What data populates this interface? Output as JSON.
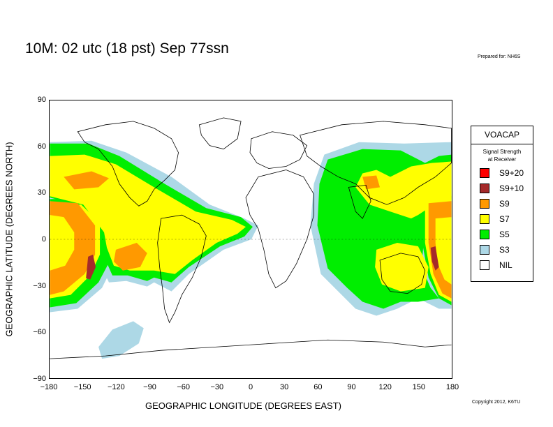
{
  "header": {
    "title": "10M:  02 utc (18 pst) Sep 77ssn",
    "prepared": "Prepared for: NH6S"
  },
  "footer": {
    "copyright": "Copyright 2012, K6TU"
  },
  "map": {
    "xlabel": "GEOGRAPHIC LONGITUDE (DEGREES EAST)",
    "ylabel": "GEOGRAPHIC LATITUDE (DEGREES NORTH)",
    "lon_range": [
      -180,
      180
    ],
    "lat_range": [
      -90,
      90
    ],
    "x_ticks": [
      "−180",
      "−150",
      "−120",
      "−90",
      "−60",
      "−30",
      "0",
      "30",
      "60",
      "90",
      "120",
      "150",
      "180"
    ],
    "y_ticks": [
      "90",
      "60",
      "30",
      "0",
      "−30",
      "−60",
      "−90"
    ],
    "coverage_zones": [
      "S3",
      "S5",
      "S7",
      "S9",
      "S9+10"
    ]
  },
  "legend": {
    "title": "VOACAP",
    "subtitle_line1": "Signal Strength",
    "subtitle_line2": "at Receiver",
    "items": [
      {
        "label": "S9+20",
        "color": "#ff0000"
      },
      {
        "label": "S9+10",
        "color": "#a52a2a"
      },
      {
        "label": "S9",
        "color": "#ff9900"
      },
      {
        "label": "S7",
        "color": "#ffff00"
      },
      {
        "label": "S5",
        "color": "#00ee00"
      },
      {
        "label": "S3",
        "color": "#add8e6"
      },
      {
        "label": "NIL",
        "color": "#ffffff"
      }
    ]
  }
}
